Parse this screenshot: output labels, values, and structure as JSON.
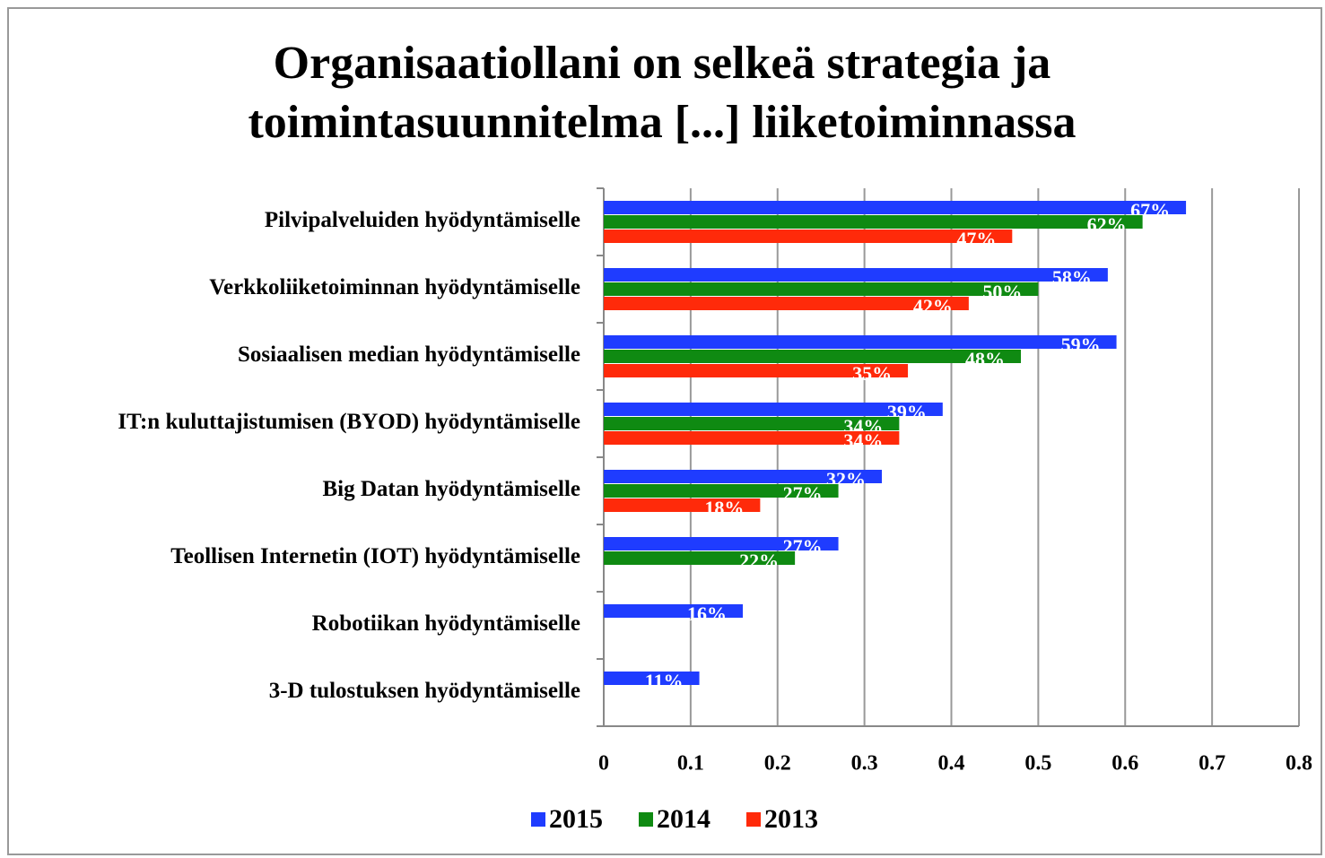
{
  "chart_data": {
    "type": "bar",
    "orientation": "horizontal",
    "title": "Organisaatiollani on selkeä strategia ja toimintasuunnitelma [...] liiketoiminnassa",
    "categories": [
      "Pilvipalveluiden hyödyntämiselle",
      "Verkkoliiketoiminnan hyödyntämiselle",
      "Sosiaalisen median hyödyntämiselle",
      "IT:n kuluttajistumisen (BYOD) hyödyntämiselle",
      "Big Datan hyödyntämiselle",
      "Teollisen Internetin (IOT) hyödyntämiselle",
      "Robotiikan hyödyntämiselle",
      "3-D tulostuksen hyödyntämiselle"
    ],
    "series": [
      {
        "name": "2015",
        "color": "#1f3cff",
        "values": [
          0.67,
          0.58,
          0.59,
          0.39,
          0.32,
          0.27,
          0.16,
          0.11
        ],
        "value_labels": [
          "67%",
          "58%",
          "59%",
          "39%",
          "32%",
          "27%",
          "16%",
          "11%"
        ]
      },
      {
        "name": "2014",
        "color": "#0f8a12",
        "values": [
          0.62,
          0.5,
          0.48,
          0.34,
          0.27,
          0.22,
          null,
          null
        ],
        "value_labels": [
          "62%",
          "50%",
          "48%",
          "34%",
          "27%",
          "22%",
          null,
          null
        ]
      },
      {
        "name": "2013",
        "color": "#ff2a0a",
        "values": [
          0.47,
          0.42,
          0.35,
          0.34,
          0.18,
          null,
          null,
          null
        ],
        "value_labels": [
          "47%",
          "42%",
          "35%",
          "34%",
          "18%",
          null,
          null,
          null
        ]
      }
    ],
    "xlim": [
      0,
      0.8
    ],
    "xticks": [
      0,
      0.1,
      0.2,
      0.3,
      0.4,
      0.5,
      0.6,
      0.7,
      0.8
    ],
    "grid": true,
    "legend": "bottom"
  }
}
